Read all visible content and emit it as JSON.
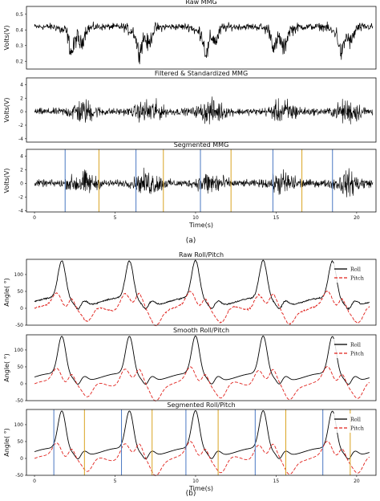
{
  "figure": {
    "caption_a": "(a)",
    "caption_b": "(b)"
  },
  "colors": {
    "blue_marker": "#4a78c2",
    "orange_marker": "#d9a321",
    "roll": "#000000",
    "pitch": "#e0201b",
    "signal": "#000000"
  },
  "chart_data": [
    {
      "type": "line",
      "title": "Raw MMG",
      "ylabel": "Volts(V)",
      "xlabel": "",
      "xlim": [
        -0.5,
        21.2
      ],
      "ylim": [
        0.15,
        0.55
      ],
      "yticks": [
        "0.5",
        "0.4",
        "0.3",
        "0.2"
      ],
      "xticks": [],
      "series": [
        {
          "signal": "mmg_raw",
          "baseline": 0.42,
          "dip_centers": [
            2.5,
            6.7,
            10.8,
            15.2,
            19.2
          ],
          "dip_depth": 0.18,
          "noise": 0.03
        }
      ]
    },
    {
      "type": "line",
      "title": "Filtered & Standardized MMG",
      "ylabel": "Volts(V)",
      "xlabel": "",
      "xlim": [
        -0.5,
        21.2
      ],
      "ylim": [
        -4.5,
        5
      ],
      "yticks": [
        "4",
        "2",
        "0",
        "-2",
        "-4"
      ],
      "xticks": [],
      "series": [
        {
          "signal": "mmg_filtered",
          "burst_centers": [
            3.0,
            7.1,
            11.0,
            15.5,
            19.5
          ],
          "burst_amplitude": 4.2,
          "noise": 0.4
        }
      ]
    },
    {
      "type": "line",
      "title": "Segmented MMG",
      "ylabel": "Volts(V)",
      "xlabel": "Time(s)",
      "xlim": [
        -0.5,
        21.2
      ],
      "ylim": [
        -4.2,
        5
      ],
      "yticks": [
        "4",
        "2",
        "0",
        "-2",
        "-4"
      ],
      "xticks": [
        "0",
        "5",
        "10",
        "15",
        "20"
      ],
      "series": [
        {
          "signal": "mmg_filtered",
          "burst_centers": [
            3.0,
            7.1,
            11.0,
            15.5,
            19.5
          ],
          "burst_amplitude": 4.2,
          "noise": 0.4
        }
      ],
      "markers_blue": [
        1.9,
        6.3,
        10.3,
        14.8,
        18.5
      ],
      "markers_orange": [
        4.0,
        8.0,
        12.2,
        16.6
      ]
    },
    {
      "type": "line",
      "title": "Raw Roll/Pitch",
      "ylabel": "Angle( °)",
      "xlabel": "",
      "xlim": [
        -0.5,
        21.2
      ],
      "ylim": [
        -50,
        145
      ],
      "yticks": [
        "100",
        "50",
        "0",
        "-50"
      ],
      "xticks": [],
      "legend": {
        "position": "top-right",
        "entries": [
          "Roll",
          "Pitch"
        ]
      },
      "series": [
        {
          "name": "Roll",
          "cycle_starts": [
            0,
            4.2,
            8.3,
            12.5,
            16.8
          ],
          "peak": 135,
          "base": 20,
          "noise": 3
        },
        {
          "name": "Pitch",
          "cycle_starts": [
            0,
            4.2,
            8.3,
            12.5,
            16.8
          ],
          "amplitude": 45,
          "base": 0,
          "noise": 3
        }
      ]
    },
    {
      "type": "line",
      "title": "Smooth Roll/Pitch",
      "ylabel": "Angle( °)",
      "xlabel": "",
      "xlim": [
        -0.5,
        21.2
      ],
      "ylim": [
        -50,
        145
      ],
      "yticks": [
        "100",
        "50",
        "0",
        "-50"
      ],
      "xticks": [],
      "legend": {
        "position": "top-right",
        "entries": [
          "Roll",
          "Pitch"
        ]
      },
      "series": [
        {
          "name": "Roll",
          "cycle_starts": [
            0,
            4.2,
            8.3,
            12.5,
            16.8
          ],
          "peak": 135,
          "base": 20,
          "noise": 0
        },
        {
          "name": "Pitch",
          "cycle_starts": [
            0,
            4.2,
            8.3,
            12.5,
            16.8
          ],
          "amplitude": 45,
          "base": 0,
          "noise": 0
        }
      ]
    },
    {
      "type": "line",
      "title": "Segmented Roll/Pitch",
      "ylabel": "Angle( °)",
      "xlabel": "Time(s)",
      "xlim": [
        -0.5,
        21.2
      ],
      "ylim": [
        -50,
        145
      ],
      "yticks": [
        "100",
        "50",
        "0",
        "-50"
      ],
      "xticks": [
        "0",
        "5",
        "10",
        "15",
        "20"
      ],
      "legend": {
        "position": "top-right",
        "entries": [
          "Roll",
          "Pitch"
        ]
      },
      "series": [
        {
          "name": "Roll",
          "cycle_starts": [
            0,
            4.2,
            8.3,
            12.5,
            16.8
          ],
          "peak": 135,
          "base": 20,
          "noise": 0
        },
        {
          "name": "Pitch",
          "cycle_starts": [
            0,
            4.2,
            8.3,
            12.5,
            16.8
          ],
          "amplitude": 45,
          "base": 0,
          "noise": 0
        }
      ],
      "markers_blue": [
        1.2,
        5.4,
        9.4,
        13.7,
        17.9
      ],
      "markers_orange": [
        3.1,
        7.3,
        11.4,
        15.6,
        19.6
      ]
    }
  ]
}
